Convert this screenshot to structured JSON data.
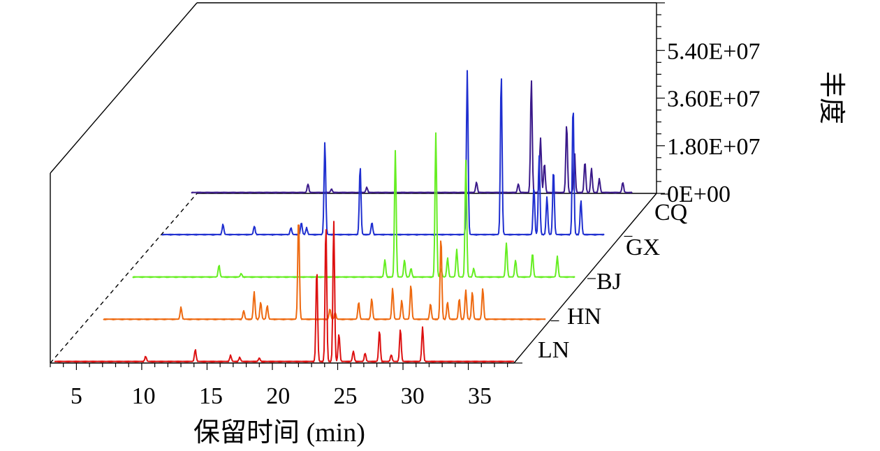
{
  "chart_data": {
    "type": "line",
    "subtype": "3d-waterfall-chromatogram",
    "xlabel": "保留时间 (min)",
    "ylabel": "丰度",
    "x_ticks": [
      "5",
      "10",
      "15",
      "20",
      "25",
      "30",
      "35"
    ],
    "y_ticks": [
      "0E+00",
      "1.80E+07",
      "3.60E+07",
      "5.40E+07"
    ],
    "xlim": [
      3,
      38.5
    ],
    "ylim": [
      0,
      72000000
    ],
    "series": [
      {
        "name": "LN",
        "color": "#dd1111",
        "peaks": [
          [
            10.3,
            1500000
          ],
          [
            14.1,
            3500000
          ],
          [
            16.8,
            1800000
          ],
          [
            17.5,
            1200000
          ],
          [
            19.0,
            1000000
          ],
          [
            23.4,
            27000000
          ],
          [
            24.1,
            40000000
          ],
          [
            24.7,
            41000000
          ],
          [
            25.1,
            8000000
          ],
          [
            26.2,
            3000000
          ],
          [
            27.1,
            2500000
          ],
          [
            28.2,
            9000000
          ],
          [
            29.1,
            2000000
          ],
          [
            29.8,
            9500000
          ],
          [
            31.5,
            10000000
          ]
        ],
        "baseline": 300000
      },
      {
        "name": "HN",
        "color": "#ee6a11",
        "peaks": [
          [
            10.2,
            3500000
          ],
          [
            15.0,
            2500000
          ],
          [
            15.8,
            8000000
          ],
          [
            16.3,
            5000000
          ],
          [
            16.8,
            4000000
          ],
          [
            19.2,
            30000000
          ],
          [
            21.6,
            3000000
          ],
          [
            22.0,
            2000000
          ],
          [
            23.8,
            5000000
          ],
          [
            24.8,
            6000000
          ],
          [
            26.4,
            9000000
          ],
          [
            27.1,
            5500000
          ],
          [
            27.8,
            10000000
          ],
          [
            29.3,
            4500000
          ],
          [
            30.1,
            24000000
          ],
          [
            30.6,
            5000000
          ],
          [
            31.5,
            6000000
          ],
          [
            32.0,
            8500000
          ],
          [
            32.5,
            8000000
          ],
          [
            33.3,
            9000000
          ]
        ],
        "baseline": 300000
      },
      {
        "name": "BJ",
        "color": "#66ee22",
        "peaks": [
          [
            10.3,
            3500000
          ],
          [
            12.0,
            1000000
          ],
          [
            23.0,
            5000000
          ],
          [
            23.8,
            37000000
          ],
          [
            24.5,
            5000000
          ],
          [
            25.0,
            2500000
          ],
          [
            26.9,
            42000000
          ],
          [
            27.3,
            2500000
          ],
          [
            27.8,
            5500000
          ],
          [
            28.5,
            8000000
          ],
          [
            29.2,
            34000000
          ],
          [
            29.8,
            2500000
          ],
          [
            32.3,
            10000000
          ],
          [
            33.0,
            5000000
          ],
          [
            34.3,
            7000000
          ],
          [
            36.2,
            6000000
          ]
        ],
        "baseline": 300000
      },
      {
        "name": "GX",
        "color": "#1f2fd0",
        "peaks": [
          [
            7.8,
            3000000
          ],
          [
            10.2,
            2500000
          ],
          [
            13.0,
            2000000
          ],
          [
            13.8,
            3500000
          ],
          [
            14.2,
            2000000
          ],
          [
            15.6,
            27000000
          ],
          [
            18.3,
            20000000
          ],
          [
            19.2,
            3500000
          ],
          [
            26.5,
            48000000
          ],
          [
            29.1,
            47000000
          ],
          [
            31.6,
            14000000
          ],
          [
            32.0,
            23000000
          ],
          [
            32.6,
            11000000
          ],
          [
            33.1,
            19000000
          ],
          [
            34.6,
            38000000
          ],
          [
            35.2,
            10000000
          ]
        ],
        "baseline": 350000
      },
      {
        "name": "CQ",
        "color": "#3b1a8a",
        "peaks": [
          [
            11.5,
            2500000
          ],
          [
            13.3,
            1000000
          ],
          [
            16.0,
            1500000
          ],
          [
            24.4,
            3000000
          ],
          [
            27.6,
            2500000
          ],
          [
            28.6,
            33000000
          ],
          [
            29.3,
            16000000
          ],
          [
            29.6,
            8500000
          ],
          [
            31.3,
            20000000
          ],
          [
            31.9,
            12000000
          ],
          [
            32.7,
            9000000
          ],
          [
            33.2,
            7000000
          ],
          [
            33.8,
            4000000
          ],
          [
            35.6,
            3000000
          ]
        ],
        "baseline": 300000
      }
    ],
    "legend_position": "right, at the end of each trace",
    "grid": false
  }
}
